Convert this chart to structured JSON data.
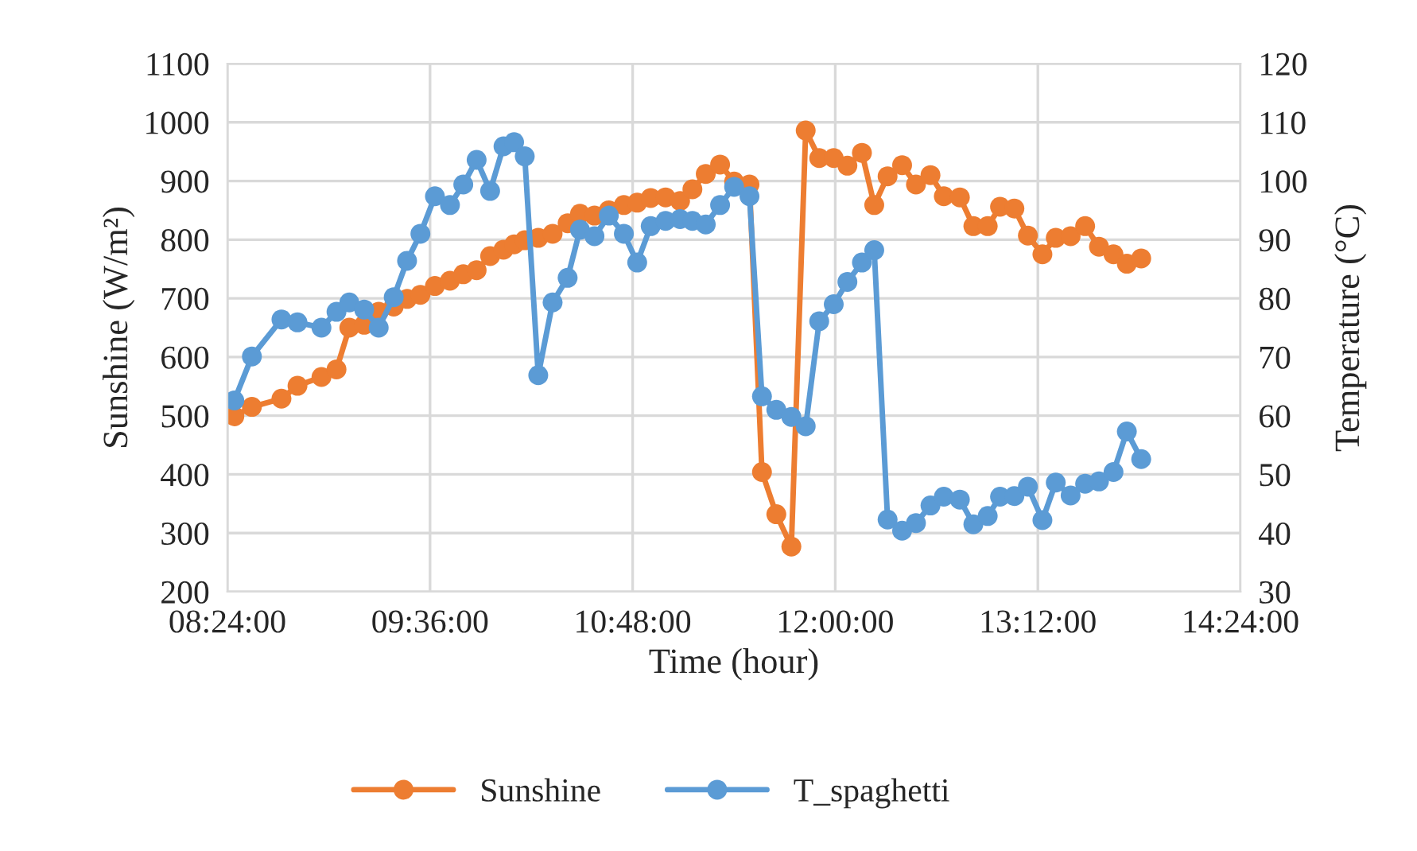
{
  "chart_data": {
    "type": "line",
    "xlabel": "Time (hour)",
    "ylabel": "Sunshine (W/m²)",
    "y2label": "Temperature (°C)",
    "x": [
      8.441,
      8.545,
      8.72,
      8.815,
      8.957,
      9.046,
      9.122,
      9.21,
      9.296,
      9.385,
      9.464,
      9.543,
      9.629,
      9.718,
      9.797,
      9.876,
      9.956,
      10.035,
      10.098,
      10.161,
      10.241,
      10.326,
      10.415,
      10.488,
      10.574,
      10.659,
      10.748,
      10.827,
      10.907,
      10.995,
      11.081,
      11.154,
      11.233,
      11.318,
      11.401,
      11.492,
      11.566,
      11.651,
      11.74,
      11.825,
      11.905,
      11.991,
      12.072,
      12.158,
      12.231,
      12.31,
      12.396,
      12.478,
      12.564,
      12.643,
      12.738,
      12.818,
      12.903,
      12.976,
      13.061,
      13.141,
      13.227,
      13.306,
      13.394,
      13.48,
      13.562,
      13.648,
      13.727,
      13.812
    ],
    "series": [
      {
        "name": "Sunshine",
        "color": "#ed7d31",
        "values": [
          499,
          515,
          529,
          551,
          566,
          579,
          650,
          655,
          677,
          686,
          699,
          706,
          721,
          730,
          741,
          748,
          772,
          783,
          792,
          799,
          803,
          810,
          828,
          844,
          841,
          850,
          859,
          863,
          871,
          872,
          866,
          886,
          912,
          928,
          899,
          894,
          404,
          332,
          277,
          986,
          939,
          939,
          926,
          948,
          859,
          908,
          927,
          894,
          910,
          874,
          872,
          823,
          823,
          856,
          853,
          807,
          775,
          803,
          806,
          823,
          788,
          775,
          759,
          768
        ]
      },
      {
        "name": "T_spaghetti",
        "color": "#5b9bd5",
        "axis": "y2",
        "values": [
          62.6,
          70.1,
          76.4,
          75.9,
          75.0,
          77.7,
          79.3,
          78.1,
          75.0,
          80.2,
          86.4,
          91.0,
          97.4,
          95.9,
          99.4,
          103.6,
          98.3,
          105.9,
          106.6,
          104.2,
          66.9,
          79.3,
          83.5,
          91.7,
          90.6,
          94.1,
          91.0,
          86.1,
          92.3,
          93.2,
          93.5,
          93.2,
          92.6,
          95.9,
          99.0,
          97.4,
          63.3,
          61.0,
          59.8,
          58.2,
          76.1,
          79.0,
          82.8,
          86.1,
          88.2,
          42.3,
          40.4,
          41.7,
          44.7,
          46.2,
          45.7,
          41.5,
          42.9,
          46.2,
          46.3,
          47.9,
          42.2,
          48.6,
          46.4,
          48.4,
          48.8,
          50.4,
          57.3,
          52.6
        ]
      }
    ],
    "xlim": [
      8.4,
      14.4
    ],
    "xticks": [
      {
        "value": 8.4,
        "label": "08:24:00"
      },
      {
        "value": 9.6,
        "label": "09:36:00"
      },
      {
        "value": 10.8,
        "label": "10:48:00"
      },
      {
        "value": 12.0,
        "label": "12:00:00"
      },
      {
        "value": 13.2,
        "label": "13:12:00"
      },
      {
        "value": 14.4,
        "label": "14:24:00"
      }
    ],
    "ylim": [
      200,
      1100
    ],
    "yticks": [
      200,
      300,
      400,
      500,
      600,
      700,
      800,
      900,
      1000,
      1100
    ],
    "y2lim": [
      30,
      120
    ],
    "y2ticks": [
      30,
      40,
      50,
      60,
      70,
      80,
      90,
      100,
      110,
      120
    ],
    "grid": true,
    "legend": "bottom",
    "marker": "circle",
    "line_style": "solid"
  }
}
